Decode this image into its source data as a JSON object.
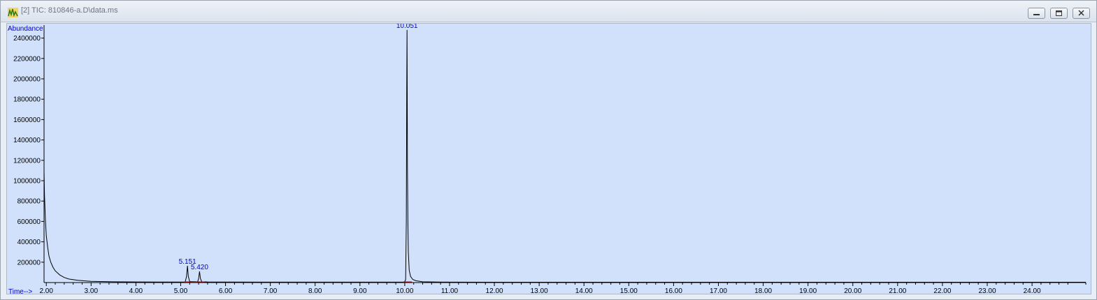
{
  "window": {
    "title": "[2] TIC: 810846-a.D\\data.ms",
    "controls": [
      "minimize",
      "restore",
      "close"
    ]
  },
  "colors": {
    "plot_bg": "#d1e1fb",
    "trace": "#000000",
    "label": "#0000cc",
    "baseline": "#cc0000"
  },
  "chart_data": {
    "type": "line",
    "title": "TIC: 810846-a.D\\data.ms",
    "ylabel": "Abundance",
    "xlabel": "Time-->",
    "xlim": [
      1.95,
      25.2
    ],
    "ylim": [
      0,
      2500000
    ],
    "xticks": [
      "2.00",
      "3.00",
      "4.00",
      "5.00",
      "6.00",
      "7.00",
      "8.00",
      "9.00",
      "10.00",
      "11.00",
      "12.00",
      "13.00",
      "14.00",
      "15.00",
      "16.00",
      "17.00",
      "18.00",
      "19.00",
      "20.00",
      "21.00",
      "22.00",
      "23.00",
      "24.00"
    ],
    "yticks": [
      "200000",
      "400000",
      "600000",
      "800000",
      "1000000",
      "1200000",
      "1400000",
      "1600000",
      "1800000",
      "2000000",
      "2200000",
      "2400000"
    ],
    "series": [
      {
        "name": "TIC",
        "x": [
          1.95,
          1.96,
          1.98,
          2.0,
          2.03,
          2.06,
          2.1,
          2.15,
          2.2,
          2.3,
          2.4,
          2.5,
          2.7,
          3.0,
          3.5,
          4.0,
          4.5,
          5.0,
          5.1,
          5.13,
          5.151,
          5.17,
          5.2,
          5.3,
          5.38,
          5.4,
          5.42,
          5.44,
          5.47,
          5.6,
          6.0,
          7.0,
          8.0,
          9.0,
          9.9,
          9.98,
          10.0,
          10.02,
          10.035,
          10.045,
          10.051,
          10.056,
          10.06,
          10.07,
          10.08,
          10.1,
          10.13,
          10.18,
          10.25,
          10.4,
          11.0,
          12.0,
          14.0,
          16.0,
          18.0,
          20.0,
          22.0,
          24.0,
          25.2
        ],
        "y": [
          1090000,
          860000,
          620000,
          460000,
          350000,
          260000,
          200000,
          150000,
          115000,
          75000,
          50000,
          35000,
          22000,
          12000,
          8000,
          6000,
          5000,
          5000,
          6000,
          60000,
          165000,
          60000,
          10000,
          8000,
          9000,
          40000,
          110000,
          40000,
          8000,
          6000,
          5000,
          4000,
          4000,
          4000,
          4000,
          5000,
          8000,
          30000,
          600000,
          1950000,
          2480000,
          1800000,
          1150000,
          600000,
          300000,
          120000,
          60000,
          30000,
          18000,
          8000,
          4000,
          3000,
          3000,
          3000,
          3000,
          3000,
          3000,
          3000,
          3000
        ]
      }
    ],
    "peaks": [
      {
        "time": 5.151,
        "label": "5.151",
        "abundance": 165000
      },
      {
        "time": 5.42,
        "label": "5.420",
        "abundance": 110000
      },
      {
        "time": 10.051,
        "label": "10.051",
        "abundance": 2480000
      }
    ]
  }
}
